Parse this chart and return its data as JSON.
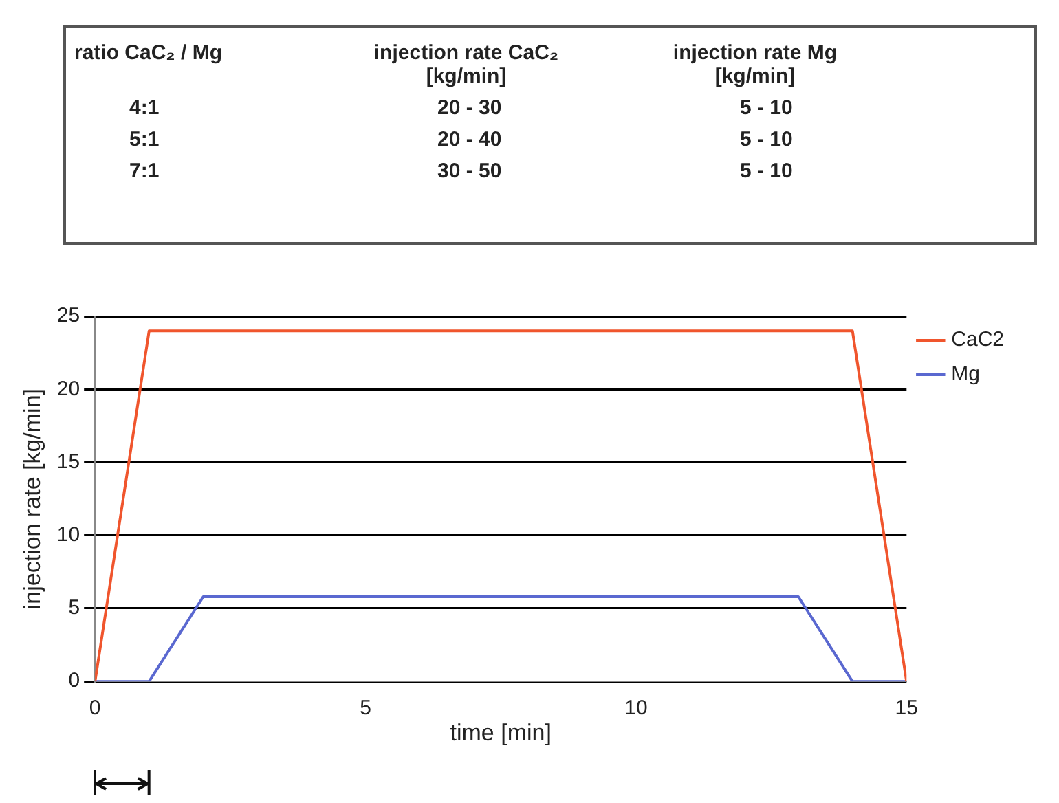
{
  "chart_data": [
    {
      "type": "other",
      "annotations": [
        "ratio CaC₂ / Mg",
        "injection rate CaC₂ [kg/min]",
        "injection rate Mg [kg/min]",
        "4:1",
        "20 - 30",
        "5 - 10",
        "5:1",
        "20 - 40",
        "5 - 10",
        "7:1",
        "30 - 50",
        "5 - 10"
      ]
    },
    {
      "type": "line",
      "xlabel": "time [min]",
      "ylabel": "injection rate [kg/min]",
      "xlim": [
        0,
        15
      ],
      "xticks": [
        0,
        5,
        10,
        15
      ],
      "ylim": [
        0,
        25
      ],
      "yticks": [
        0,
        5,
        10,
        15,
        20,
        25
      ],
      "grid": "y",
      "legend": "top right",
      "marker": "none",
      "line_style": "solid",
      "series": [
        {
          "name": "CaC2",
          "color": "#f0552d",
          "x": [
            0,
            1,
            14,
            15
          ],
          "values": [
            0,
            24,
            24,
            0
          ]
        },
        {
          "name": "Mg",
          "color": "#5a68d0",
          "x": [
            0,
            1,
            2,
            13,
            14,
            15
          ],
          "values": [
            0,
            0,
            5.8,
            5.8,
            0,
            0
          ]
        }
      ]
    }
  ]
}
